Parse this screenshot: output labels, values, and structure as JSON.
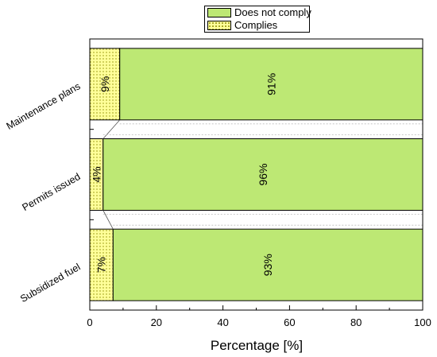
{
  "chart_data": {
    "type": "bar",
    "orientation": "horizontal",
    "stacked": true,
    "categories": [
      "Maintenance plans",
      "Permits issued",
      "Subsidized fuel"
    ],
    "series": [
      {
        "name": "Complies",
        "values": [
          9,
          4,
          7
        ],
        "labels": [
          "9%",
          "4%",
          "7%"
        ],
        "color": "#ffff99",
        "pattern": "dots"
      },
      {
        "name": "Does not comply",
        "values": [
          91,
          96,
          93
        ],
        "labels": [
          "91%",
          "96%",
          "93%"
        ],
        "color": "#bde874"
      }
    ],
    "xlabel": "Percentage [%]",
    "ylabel": "",
    "xlim": [
      0,
      100
    ],
    "xticks": [
      "0",
      "20",
      "40",
      "60",
      "80",
      "100"
    ],
    "legend": "top-center",
    "grid": false
  }
}
